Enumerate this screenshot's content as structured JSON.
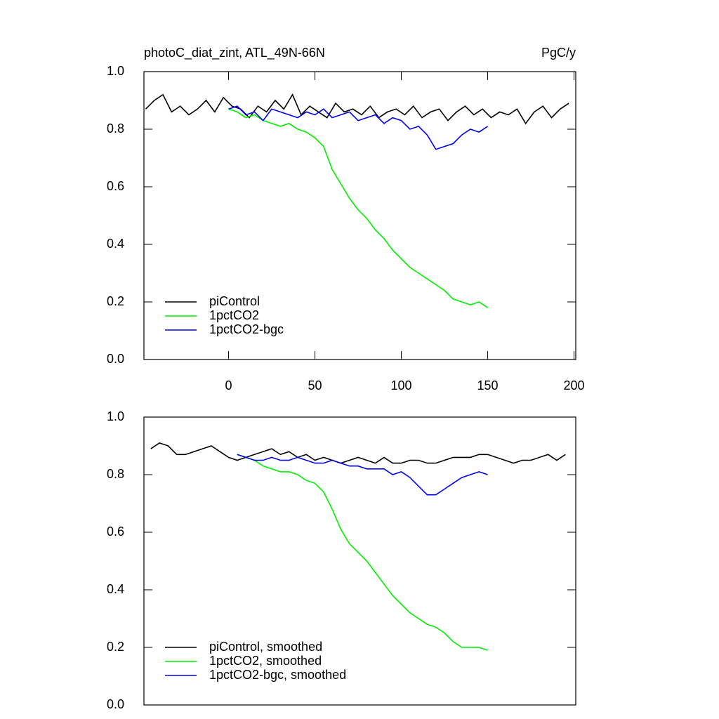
{
  "chart_data": [
    {
      "type": "line",
      "title": "photoC_diat_zint, ATL_49N-66N",
      "subtitle": "PgC/y",
      "xlim": [
        -49,
        201
      ],
      "xticks": [
        0,
        50,
        100,
        150,
        200
      ],
      "ylim": [
        0,
        1
      ],
      "yticks": [
        {
          "value": 0,
          "label": "0.0"
        },
        0.2,
        0.4,
        0.6,
        0.8,
        {
          "value": 1,
          "label": "1.0"
        }
      ],
      "legend": "lower left",
      "series": [
        {
          "name": "piControl",
          "color": "#000000",
          "x": [
            -48,
            -43,
            -38,
            -33,
            -28,
            -23,
            -18,
            -13,
            -8,
            -3,
            2,
            7,
            12,
            17,
            22,
            27,
            32,
            37,
            42,
            47,
            52,
            57,
            62,
            67,
            72,
            77,
            82,
            87,
            92,
            97,
            102,
            107,
            112,
            117,
            122,
            127,
            132,
            137,
            142,
            147,
            152,
            157,
            162,
            167,
            172,
            177,
            182,
            187,
            192,
            197
          ],
          "values": [
            0.87,
            0.9,
            0.92,
            0.86,
            0.88,
            0.85,
            0.87,
            0.9,
            0.86,
            0.91,
            0.88,
            0.87,
            0.84,
            0.88,
            0.86,
            0.9,
            0.87,
            0.92,
            0.85,
            0.88,
            0.86,
            0.84,
            0.89,
            0.86,
            0.87,
            0.85,
            0.88,
            0.84,
            0.86,
            0.87,
            0.85,
            0.88,
            0.84,
            0.86,
            0.87,
            0.83,
            0.86,
            0.88,
            0.85,
            0.87,
            0.84,
            0.86,
            0.85,
            0.87,
            0.82,
            0.86,
            0.88,
            0.84,
            0.87,
            0.89
          ]
        },
        {
          "name": "1pctCO2",
          "color": "#00ee00",
          "x": [
            0,
            5,
            10,
            15,
            20,
            25,
            30,
            35,
            40,
            45,
            50,
            55,
            60,
            65,
            70,
            75,
            80,
            85,
            90,
            95,
            100,
            105,
            110,
            115,
            120,
            125,
            130,
            135,
            140,
            145,
            150
          ],
          "values": [
            0.87,
            0.86,
            0.84,
            0.85,
            0.83,
            0.82,
            0.81,
            0.82,
            0.8,
            0.79,
            0.77,
            0.74,
            0.66,
            0.61,
            0.56,
            0.52,
            0.49,
            0.45,
            0.42,
            0.38,
            0.35,
            0.32,
            0.3,
            0.28,
            0.26,
            0.24,
            0.21,
            0.2,
            0.19,
            0.2,
            0.18
          ]
        },
        {
          "name": "1pctCO2-bgc",
          "color": "#0000ee",
          "x": [
            0,
            5,
            10,
            15,
            20,
            25,
            30,
            35,
            40,
            45,
            50,
            55,
            60,
            65,
            70,
            75,
            80,
            85,
            90,
            95,
            100,
            105,
            110,
            115,
            120,
            125,
            130,
            135,
            140,
            145,
            150
          ],
          "values": [
            0.87,
            0.88,
            0.85,
            0.86,
            0.83,
            0.87,
            0.86,
            0.85,
            0.84,
            0.86,
            0.85,
            0.87,
            0.84,
            0.85,
            0.86,
            0.83,
            0.84,
            0.85,
            0.82,
            0.84,
            0.83,
            0.8,
            0.81,
            0.78,
            0.73,
            0.74,
            0.75,
            0.78,
            0.8,
            0.79,
            0.81
          ]
        }
      ]
    },
    {
      "type": "line",
      "xlim": [
        -49,
        201
      ],
      "ylim": [
        0,
        1
      ],
      "yticks": [
        {
          "value": 0,
          "label": "0.0"
        },
        0.2,
        0.4,
        0.6,
        0.8,
        {
          "value": 1,
          "label": "1.0"
        }
      ],
      "legend": "lower left",
      "series": [
        {
          "name": "piControl, smoothed",
          "color": "#000000",
          "x": [
            -45,
            -40,
            -35,
            -30,
            -25,
            -20,
            -15,
            -10,
            -5,
            0,
            5,
            10,
            15,
            20,
            25,
            30,
            35,
            40,
            45,
            50,
            55,
            60,
            65,
            70,
            75,
            80,
            85,
            90,
            95,
            100,
            105,
            110,
            115,
            120,
            125,
            130,
            135,
            140,
            145,
            150,
            155,
            160,
            165,
            170,
            175,
            180,
            185,
            190,
            195
          ],
          "values": [
            0.89,
            0.91,
            0.9,
            0.87,
            0.87,
            0.88,
            0.89,
            0.9,
            0.88,
            0.86,
            0.85,
            0.86,
            0.87,
            0.88,
            0.89,
            0.87,
            0.88,
            0.86,
            0.87,
            0.85,
            0.86,
            0.85,
            0.84,
            0.85,
            0.86,
            0.85,
            0.84,
            0.86,
            0.84,
            0.84,
            0.85,
            0.85,
            0.84,
            0.84,
            0.85,
            0.86,
            0.86,
            0.86,
            0.87,
            0.87,
            0.86,
            0.85,
            0.84,
            0.85,
            0.85,
            0.86,
            0.87,
            0.85,
            0.87
          ]
        },
        {
          "name": "1pctCO2, smoothed",
          "color": "#00ee00",
          "x": [
            5,
            10,
            15,
            20,
            25,
            30,
            35,
            40,
            45,
            50,
            55,
            60,
            65,
            70,
            75,
            80,
            85,
            90,
            95,
            100,
            105,
            110,
            115,
            120,
            125,
            130,
            135,
            140,
            145,
            150
          ],
          "values": [
            0.87,
            0.86,
            0.85,
            0.83,
            0.82,
            0.81,
            0.81,
            0.8,
            0.78,
            0.77,
            0.74,
            0.68,
            0.61,
            0.56,
            0.53,
            0.5,
            0.46,
            0.42,
            0.38,
            0.35,
            0.32,
            0.3,
            0.28,
            0.27,
            0.25,
            0.22,
            0.2,
            0.2,
            0.2,
            0.19
          ]
        },
        {
          "name": "1pctCO2-bgc, smoothed",
          "color": "#0000ee",
          "x": [
            5,
            10,
            15,
            20,
            25,
            30,
            35,
            40,
            45,
            50,
            55,
            60,
            65,
            70,
            75,
            80,
            85,
            90,
            95,
            100,
            105,
            110,
            115,
            120,
            125,
            130,
            135,
            140,
            145,
            150
          ],
          "values": [
            0.87,
            0.86,
            0.85,
            0.85,
            0.86,
            0.85,
            0.85,
            0.86,
            0.85,
            0.84,
            0.84,
            0.85,
            0.84,
            0.83,
            0.83,
            0.82,
            0.82,
            0.82,
            0.8,
            0.81,
            0.79,
            0.76,
            0.73,
            0.73,
            0.75,
            0.77,
            0.79,
            0.8,
            0.81,
            0.8
          ]
        }
      ]
    }
  ]
}
